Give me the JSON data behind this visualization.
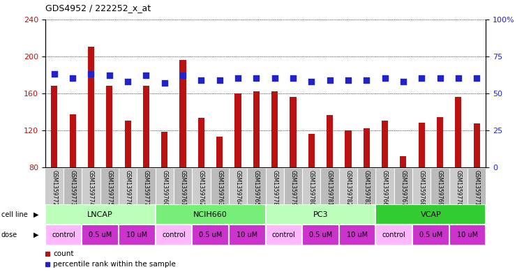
{
  "title": "GDS4952 / 222252_x_at",
  "samples": [
    "GSM1359772",
    "GSM1359773",
    "GSM1359774",
    "GSM1359775",
    "GSM1359776",
    "GSM1359777",
    "GSM1359760",
    "GSM1359761",
    "GSM1359762",
    "GSM1359763",
    "GSM1359764",
    "GSM1359765",
    "GSM1359778",
    "GSM1359779",
    "GSM1359780",
    "GSM1359781",
    "GSM1359782",
    "GSM1359783",
    "GSM1359766",
    "GSM1359767",
    "GSM1359768",
    "GSM1359769",
    "GSM1359770",
    "GSM1359771"
  ],
  "counts": [
    168,
    137,
    210,
    168,
    130,
    168,
    118,
    196,
    133,
    113,
    160,
    162,
    162,
    156,
    116,
    136,
    120,
    122,
    130,
    92,
    128,
    134,
    156,
    127
  ],
  "percentiles": [
    63,
    60,
    63,
    62,
    58,
    62,
    57,
    62,
    59,
    59,
    60,
    60,
    60,
    60,
    58,
    59,
    59,
    59,
    60,
    58,
    60,
    60,
    60,
    60
  ],
  "cell_lines": [
    {
      "name": "LNCAP",
      "start": 0,
      "end": 6,
      "color": "#BBFFBB"
    },
    {
      "name": "NCIH660",
      "start": 6,
      "end": 12,
      "color": "#88EE88"
    },
    {
      "name": "PC3",
      "start": 12,
      "end": 18,
      "color": "#BBFFBB"
    },
    {
      "name": "VCAP",
      "start": 18,
      "end": 24,
      "color": "#44DD44"
    }
  ],
  "doses": [
    {
      "label": "control",
      "start": 0,
      "end": 2,
      "color": "#FFD0FF"
    },
    {
      "label": "0.5 uM",
      "start": 2,
      "end": 4,
      "color": "#DD44DD"
    },
    {
      "label": "10 uM",
      "start": 4,
      "end": 6,
      "color": "#DD44DD"
    },
    {
      "label": "control",
      "start": 6,
      "end": 8,
      "color": "#FFD0FF"
    },
    {
      "label": "0.5 uM",
      "start": 8,
      "end": 10,
      "color": "#DD44DD"
    },
    {
      "label": "10 uM",
      "start": 10,
      "end": 12,
      "color": "#DD44DD"
    },
    {
      "label": "control",
      "start": 12,
      "end": 14,
      "color": "#FFD0FF"
    },
    {
      "label": "0.5 uM",
      "start": 14,
      "end": 16,
      "color": "#DD44DD"
    },
    {
      "label": "10 uM",
      "start": 16,
      "end": 18,
      "color": "#DD44DD"
    },
    {
      "label": "control",
      "start": 18,
      "end": 20,
      "color": "#FFD0FF"
    },
    {
      "label": "0.5 uM",
      "start": 20,
      "end": 22,
      "color": "#DD44DD"
    },
    {
      "label": "10 uM",
      "start": 22,
      "end": 24,
      "color": "#DD44DD"
    }
  ],
  "bar_color": "#BB1111",
  "dot_color": "#2222CC",
  "ylim_left": [
    80,
    240
  ],
  "ylim_right": [
    0,
    100
  ],
  "yticks_left": [
    80,
    120,
    160,
    200,
    240
  ],
  "yticks_right": [
    0,
    25,
    50,
    75,
    100
  ],
  "ytick_labels_right": [
    "0",
    "25",
    "50",
    "75",
    "100%"
  ],
  "bar_width": 0.35,
  "label_bg": "#C8C8C8",
  "legend_count_color": "#BB1111",
  "legend_dot_color": "#2222CC",
  "fig_bg": "#FFFFFF"
}
